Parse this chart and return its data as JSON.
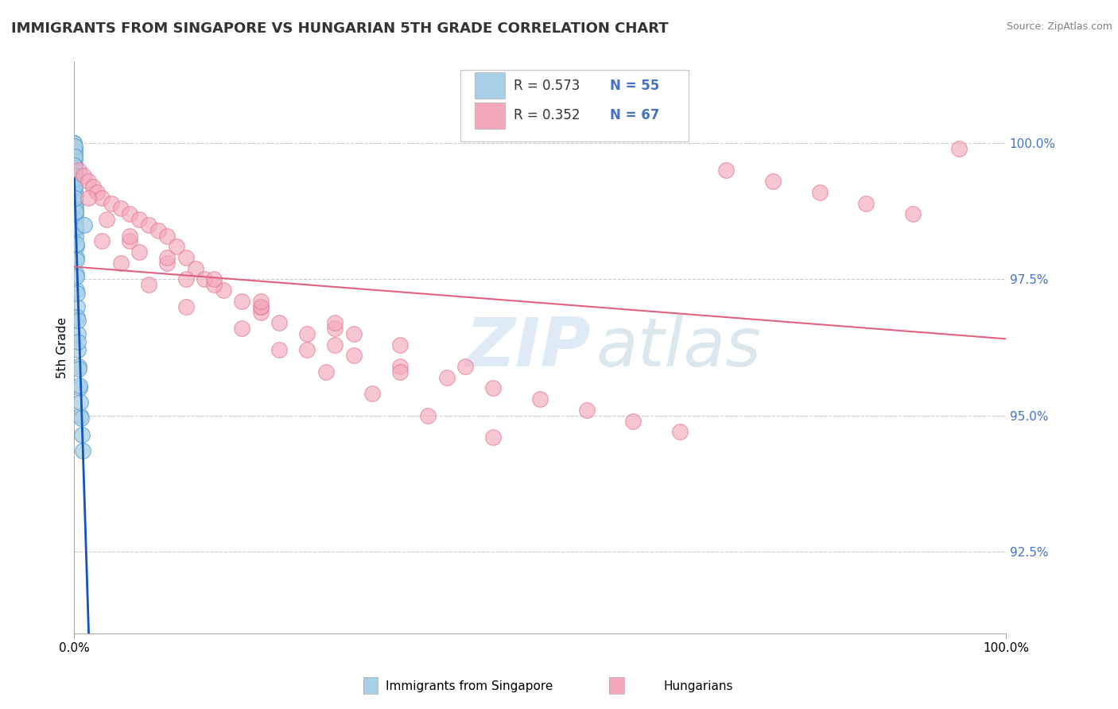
{
  "title": "IMMIGRANTS FROM SINGAPORE VS HUNGARIAN 5TH GRADE CORRELATION CHART",
  "source": "Source: ZipAtlas.com",
  "ylabel": "5th Grade",
  "y_tick_labels": [
    "92.5%",
    "95.0%",
    "97.5%",
    "100.0%"
  ],
  "y_tick_values": [
    92.5,
    95.0,
    97.5,
    100.0
  ],
  "xlim": [
    0.0,
    100.0
  ],
  "ylim": [
    91.0,
    101.5
  ],
  "legend_R1": "R = 0.573",
  "legend_N1": "N = 55",
  "legend_R2": "R = 0.352",
  "legend_N2": "N = 67",
  "color_blue": "#a8cfe8",
  "color_blue_edge": "#5599cc",
  "color_pink": "#f4a8bc",
  "color_pink_edge": "#e07090",
  "color_trendline_blue": "#1155bb",
  "color_trendline_pink": "#e06080",
  "watermark_zip": "ZIP",
  "watermark_atlas": "atlas",
  "blue_x": [
    0.02,
    0.03,
    0.04,
    0.04,
    0.05,
    0.06,
    0.07,
    0.08,
    0.09,
    0.1,
    0.1,
    0.11,
    0.12,
    0.13,
    0.14,
    0.15,
    0.16,
    0.17,
    0.18,
    0.2,
    0.22,
    0.25,
    0.28,
    0.3,
    0.35,
    0.4,
    0.45,
    0.5,
    0.6,
    0.7,
    0.02,
    0.03,
    0.05,
    0.07,
    0.09,
    0.12,
    0.15,
    0.18,
    0.21,
    0.24,
    0.27,
    0.32,
    0.38,
    0.44,
    0.5,
    0.58,
    0.65,
    0.75,
    0.85,
    0.95,
    0.02,
    0.04,
    0.06,
    0.08,
    1.1
  ],
  "blue_y": [
    100.0,
    99.9,
    99.8,
    99.85,
    99.7,
    99.6,
    99.5,
    99.4,
    99.3,
    99.2,
    99.1,
    99.0,
    98.9,
    98.8,
    98.7,
    98.6,
    98.5,
    98.4,
    98.3,
    98.1,
    97.9,
    97.6,
    97.3,
    97.0,
    96.8,
    96.5,
    96.2,
    95.9,
    95.5,
    95.0,
    100.0,
    99.95,
    99.75,
    99.55,
    99.35,
    99.05,
    98.75,
    98.45,
    98.15,
    97.85,
    97.55,
    97.25,
    96.75,
    96.35,
    95.85,
    95.55,
    95.25,
    94.95,
    94.65,
    94.35,
    99.6,
    99.4,
    99.2,
    99.0,
    98.5
  ],
  "pink_x": [
    0.5,
    1.0,
    1.5,
    2.0,
    2.5,
    3.0,
    4.0,
    5.0,
    6.0,
    7.0,
    8.0,
    9.0,
    10.0,
    11.0,
    12.0,
    13.0,
    14.0,
    16.0,
    18.0,
    20.0,
    22.0,
    25.0,
    28.0,
    30.0,
    35.0,
    40.0,
    45.0,
    50.0,
    55.0,
    60.0,
    65.0,
    70.0,
    75.0,
    80.0,
    85.0,
    90.0,
    95.0,
    3.0,
    5.0,
    8.0,
    12.0,
    18.0,
    25.0,
    35.0,
    1.5,
    3.5,
    6.0,
    10.0,
    15.0,
    20.0,
    28.0,
    7.0,
    12.0,
    20.0,
    30.0,
    22.0,
    27.0,
    32.0,
    38.0,
    45.0,
    6.0,
    10.0,
    15.0,
    20.0,
    28.0,
    35.0,
    42.0
  ],
  "pink_y": [
    99.5,
    99.4,
    99.3,
    99.2,
    99.1,
    99.0,
    98.9,
    98.8,
    98.7,
    98.6,
    98.5,
    98.4,
    98.3,
    98.1,
    97.9,
    97.7,
    97.5,
    97.3,
    97.1,
    96.9,
    96.7,
    96.5,
    96.3,
    96.1,
    95.9,
    95.7,
    95.5,
    95.3,
    95.1,
    94.9,
    94.7,
    99.5,
    99.3,
    99.1,
    98.9,
    98.7,
    99.9,
    98.2,
    97.8,
    97.4,
    97.0,
    96.6,
    96.2,
    95.8,
    99.0,
    98.6,
    98.2,
    97.8,
    97.4,
    97.0,
    96.6,
    98.0,
    97.5,
    97.0,
    96.5,
    96.2,
    95.8,
    95.4,
    95.0,
    94.6,
    98.3,
    97.9,
    97.5,
    97.1,
    96.7,
    96.3,
    95.9
  ]
}
